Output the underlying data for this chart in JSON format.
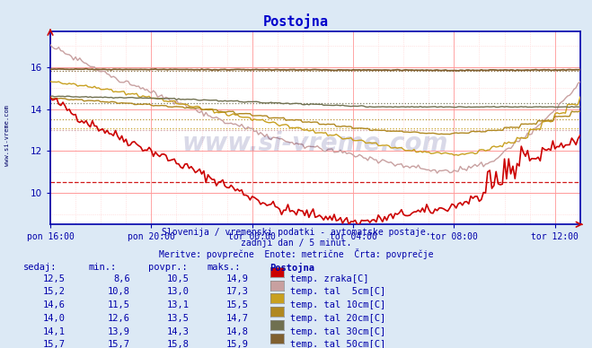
{
  "title": "Postojna",
  "fig_bg": "#dce9f5",
  "plot_bg": "#ffffff",
  "title_color": "#0000cc",
  "axis_color": "#0000aa",
  "tick_color": "#0000aa",
  "subtitle_color": "#0000aa",
  "table_header_color": "#0000aa",
  "table_val_color": "#0000aa",
  "watermark_text": "www.si-vreme.com",
  "watermark_color": "#000066",
  "sidevreme_color": "#000066",
  "x_labels": [
    "pon 16:00",
    "pon 20:00",
    "tor 00:00",
    "tor 04:00",
    "tor 08:00",
    "tor 12:00"
  ],
  "x_ticks_pos": [
    0,
    48,
    96,
    144,
    192,
    240
  ],
  "x_max": 252,
  "ylim": [
    8.5,
    17.7
  ],
  "y_ticks": [
    10,
    12,
    14,
    16
  ],
  "major_grid_color": "#ff9999",
  "minor_grid_color": "#ffcccc",
  "dot_grid_color": "#ddcccc",
  "subtitle1": "Slovenija / vremenski podatki - avtomatske postaje.",
  "subtitle2": "zadnji dan / 5 minut.",
  "subtitle3": "Meritve: povprečne  Enote: metrične  Črta: povprečje",
  "series": [
    {
      "label": "temp. zraka[C]",
      "color": "#cc0000",
      "swatch_color": "#cc0000",
      "min": 8.6,
      "povpr": 10.5,
      "maks": 14.9,
      "sedaj": 12.5,
      "avg_linestyle": "--"
    },
    {
      "label": "temp. tal  5cm[C]",
      "color": "#c8a0a0",
      "swatch_color": "#c8a0a0",
      "min": 10.8,
      "povpr": 13.0,
      "maks": 17.3,
      "sedaj": 15.2,
      "avg_linestyle": ":"
    },
    {
      "label": "temp. tal 10cm[C]",
      "color": "#c8a020",
      "swatch_color": "#c8a020",
      "min": 11.5,
      "povpr": 13.1,
      "maks": 15.5,
      "sedaj": 14.6,
      "avg_linestyle": ":"
    },
    {
      "label": "temp. tal 20cm[C]",
      "color": "#b08820",
      "swatch_color": "#b08820",
      "min": 12.6,
      "povpr": 13.5,
      "maks": 14.7,
      "sedaj": 14.0,
      "avg_linestyle": ":"
    },
    {
      "label": "temp. tal 30cm[C]",
      "color": "#707050",
      "swatch_color": "#707050",
      "min": 13.9,
      "povpr": 14.3,
      "maks": 14.8,
      "sedaj": 14.1,
      "avg_linestyle": ":"
    },
    {
      "label": "temp. tal 50cm[C]",
      "color": "#806030",
      "swatch_color": "#806030",
      "min": 15.7,
      "povpr": 15.8,
      "maks": 15.9,
      "sedaj": 15.7,
      "avg_linestyle": ":"
    }
  ],
  "table_headers": [
    "sedaj:",
    "min.:",
    "povpr.:",
    "maks.:",
    "Postojna"
  ]
}
